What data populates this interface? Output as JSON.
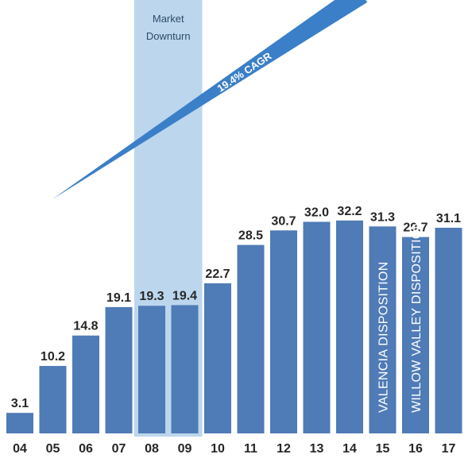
{
  "chart_data": {
    "type": "bar",
    "categories": [
      "04",
      "05",
      "06",
      "07",
      "08",
      "09",
      "10",
      "11",
      "12",
      "13",
      "14",
      "15",
      "16",
      "17"
    ],
    "values": [
      3.1,
      10.2,
      14.8,
      19.1,
      19.3,
      19.4,
      22.7,
      28.5,
      30.7,
      32.0,
      32.2,
      31.3,
      29.7,
      31.1
    ],
    "value_labels": [
      "3.1",
      "10.2",
      "14.8",
      "19.1",
      "19.3",
      "19.4",
      "22.7",
      "28.5",
      "30.7",
      "32.0",
      "32.2",
      "31.3",
      "29.7",
      "31.1"
    ],
    "ylim": [
      0,
      34
    ],
    "grid": false,
    "bar_color": "#4f7bb6",
    "highlight": {
      "label": "Market Downturn",
      "categories": [
        "08",
        "09"
      ],
      "color": "#bcd6ee"
    },
    "trend_arrow": {
      "label": "19.4% CAGR",
      "color": "#3a7fc8"
    },
    "bar_annotations": [
      {
        "category": "15",
        "text": "VALENCIA DISPOSITION"
      },
      {
        "category": "16",
        "text": "WILLOW VALLEY DISPOSITION"
      }
    ]
  }
}
